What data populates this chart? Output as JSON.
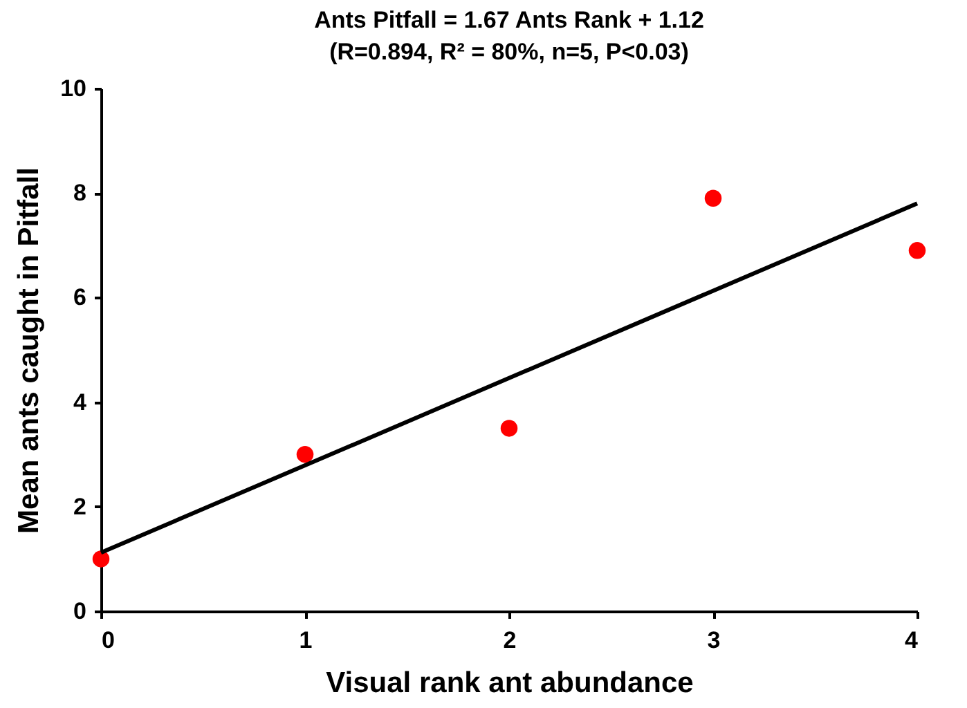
{
  "chart_data": {
    "type": "scatter",
    "title": "Ants Pitfall = 1.67 Ants Rank + 1.12",
    "subtitle": "(R=0.894, R² = 80%, n=5, P<0.03)",
    "xlabel": "Visual rank ant abundance",
    "ylabel": "Mean ants caught in Pitfall",
    "x": [
      0,
      1,
      2,
      3,
      4
    ],
    "xlim": [
      0,
      4
    ],
    "xticks": [
      0,
      1,
      2,
      3,
      4
    ],
    "ylim": [
      0,
      10
    ],
    "yticks": [
      0,
      2,
      4,
      6,
      8,
      10
    ],
    "grid": false,
    "series": [
      {
        "color": "#ff0000",
        "marker": "circle",
        "values": [
          1,
          3,
          3.5,
          7.9,
          6.9
        ]
      },
      {
        "type": "line",
        "color": "#000000",
        "line_style": "solid",
        "x": [
          0,
          4
        ],
        "values": [
          1.12,
          7.8
        ]
      }
    ]
  }
}
